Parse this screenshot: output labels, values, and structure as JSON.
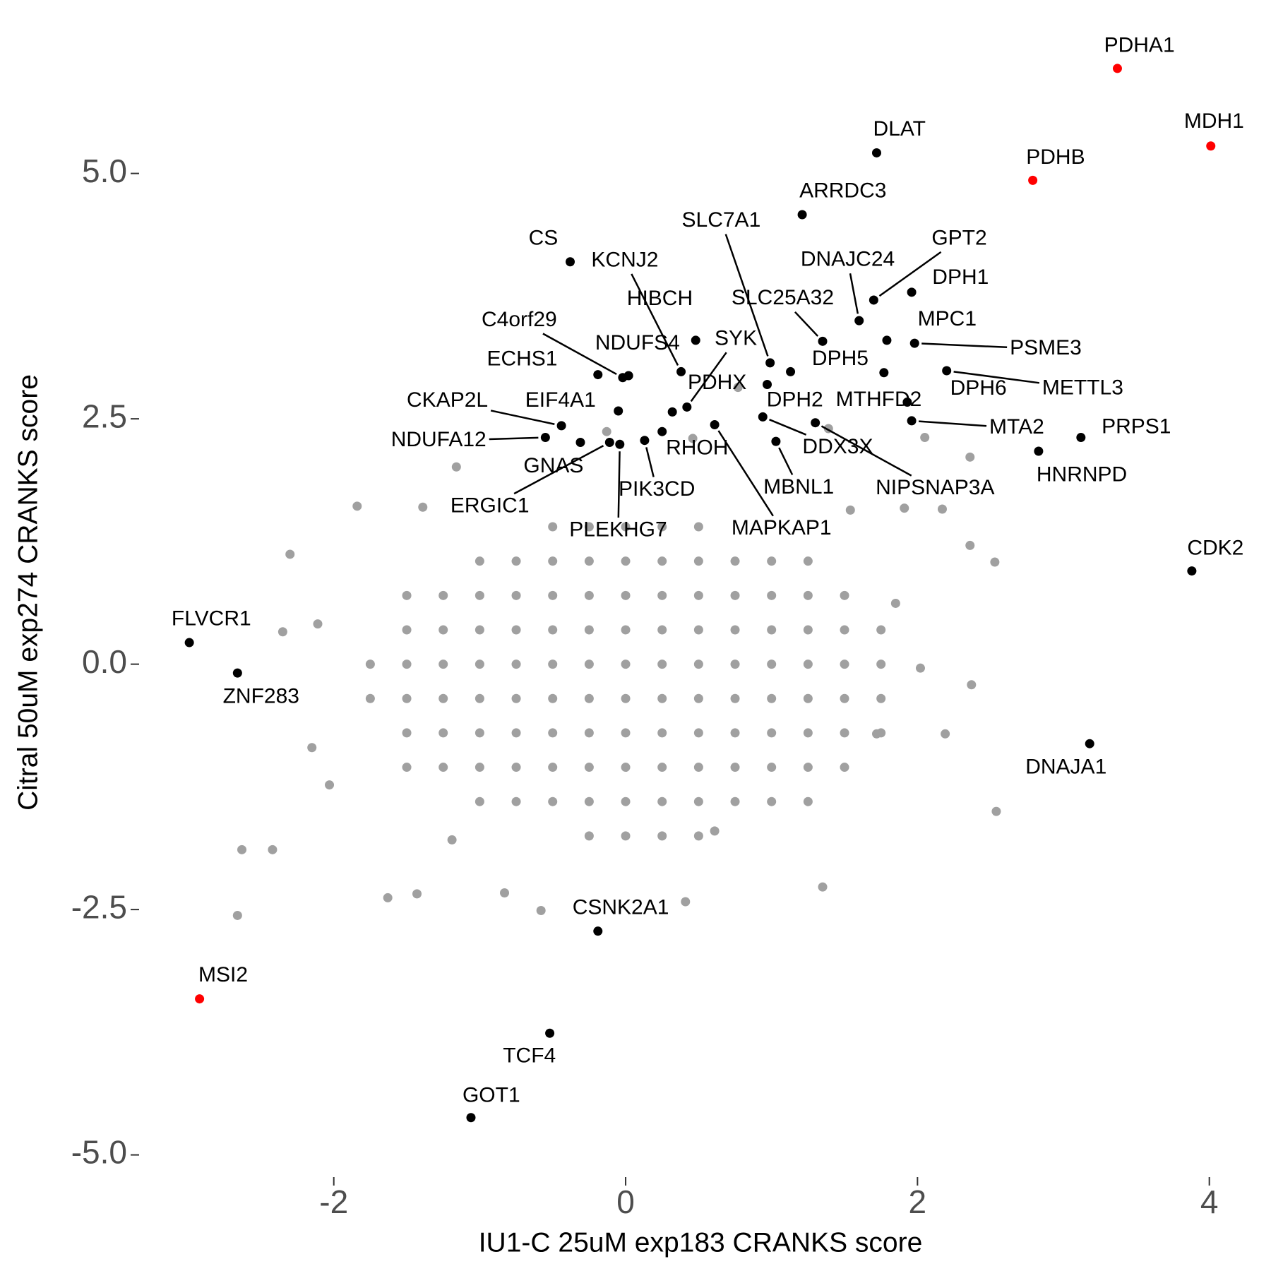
{
  "chart_data": {
    "type": "scatter",
    "x_label": "IU1-C 25uM exp183 CRANKS score",
    "y_label": "Citral 50uM exp274 CRANKS score",
    "xlim": [
      -3.31,
      4.2
    ],
    "ylim": [
      -5.19,
      6.35
    ],
    "xticks": [
      -2,
      0,
      2,
      4
    ],
    "yticks": [
      {
        "value": -5,
        "label": "-5.0"
      },
      -2.5,
      {
        "value": 0,
        "label": "0.0"
      },
      2.5,
      {
        "value": 5,
        "label": "5.0"
      }
    ],
    "grid": false,
    "series": [
      {
        "color": "#a0a0a0",
        "x": [
          -1.84,
          -1.39,
          -2.3,
          -2.35,
          -2.11,
          -2.63,
          -2.42,
          -2.66,
          -2.03,
          -2.15,
          -1.63,
          -1.43,
          -0.58,
          0.41,
          1.35,
          2.54,
          2.37,
          2.36,
          2.53,
          2.17,
          1.54,
          1.91,
          2.05,
          2.36,
          0.77,
          1.39,
          0.46,
          -0.13,
          -1.16,
          0.61,
          -0.83,
          -1.19,
          2.19,
          2.02,
          1.85,
          1.72,
          -1.75,
          -1.75,
          -1.5,
          -1.5,
          -1.5,
          -1.5,
          -1.5,
          -1.5,
          -1.25,
          -1.25,
          -1.25,
          -1.25,
          -1.25,
          -1.25,
          -1.0,
          -1.0,
          -1.0,
          -1.0,
          -1.0,
          -1.0,
          -1.0,
          -1.0,
          -0.75,
          -0.75,
          -0.75,
          -0.75,
          -0.75,
          -0.75,
          -0.75,
          -0.75,
          -0.5,
          -0.5,
          -0.5,
          -0.5,
          -0.5,
          -0.5,
          -0.5,
          -0.5,
          -0.5,
          -0.25,
          -0.25,
          -0.25,
          -0.25,
          -0.25,
          -0.25,
          -0.25,
          -0.25,
          -0.25,
          -0.25,
          0,
          0,
          0,
          0,
          0,
          0,
          0,
          0,
          0,
          0,
          0.25,
          0.25,
          0.25,
          0.25,
          0.25,
          0.25,
          0.25,
          0.25,
          0.25,
          0.25,
          0.5,
          0.5,
          0.5,
          0.5,
          0.5,
          0.5,
          0.5,
          0.5,
          0.5,
          0.5,
          0.75,
          0.75,
          0.75,
          0.75,
          0.75,
          0.75,
          0.75,
          0.75,
          1.0,
          1.0,
          1.0,
          1.0,
          1.0,
          1.0,
          1.0,
          1.0,
          1.25,
          1.25,
          1.25,
          1.25,
          1.25,
          1.25,
          1.25,
          1.25,
          1.5,
          1.5,
          1.5,
          1.5,
          1.5,
          1.5,
          1.75,
          1.75,
          1.75,
          1.75
        ],
        "y": [
          1.61,
          1.6,
          1.12,
          0.33,
          0.41,
          -1.89,
          -1.89,
          -2.56,
          -1.23,
          -0.85,
          -2.38,
          -2.34,
          -2.51,
          -2.42,
          -2.27,
          -1.5,
          -0.21,
          1.21,
          1.04,
          1.58,
          1.57,
          1.59,
          2.31,
          2.11,
          2.82,
          2.4,
          2.3,
          2.37,
          2.01,
          -1.7,
          -2.33,
          -1.79,
          -0.71,
          -0.04,
          0.62,
          -0.71,
          -0.35,
          0,
          -1.05,
          -0.7,
          -0.35,
          0,
          0.35,
          0.7,
          -1.05,
          -0.7,
          -0.35,
          0,
          0.35,
          0.7,
          -1.4,
          -1.05,
          -0.7,
          -0.35,
          0,
          0.35,
          0.7,
          1.05,
          -1.4,
          -1.05,
          -0.7,
          -0.35,
          0,
          0.35,
          0.7,
          1.05,
          -1.4,
          -1.05,
          -0.7,
          -0.35,
          0,
          0.35,
          0.7,
          1.05,
          1.4,
          -1.75,
          -1.4,
          -1.05,
          -0.7,
          -0.35,
          0,
          0.35,
          0.7,
          1.05,
          1.4,
          -1.75,
          -1.4,
          -1.05,
          -0.7,
          -0.35,
          0,
          0.35,
          0.7,
          1.05,
          1.4,
          -1.75,
          -1.4,
          -1.05,
          -0.7,
          -0.35,
          0,
          0.35,
          0.7,
          1.05,
          1.4,
          -1.75,
          -1.4,
          -1.05,
          -0.7,
          -0.35,
          0,
          0.35,
          0.7,
          1.05,
          1.4,
          -1.4,
          -1.05,
          -0.7,
          -0.35,
          0,
          0.35,
          0.7,
          1.05,
          -1.4,
          -1.05,
          -0.7,
          -0.35,
          0,
          0.35,
          0.7,
          1.05,
          -1.4,
          -1.05,
          -0.7,
          -0.35,
          0,
          0.35,
          0.7,
          1.05,
          -1.05,
          -0.7,
          -0.35,
          0,
          0.35,
          0.7,
          -0.7,
          -0.35,
          0,
          0.35
        ]
      },
      {
        "color": "#000000",
        "labels": [
          "DLAT",
          "ARRDC3",
          "CS",
          "SLC7A1",
          "KCNJ2",
          "GPT2",
          "DNAJC24",
          "DPH1",
          "HIBCH",
          "SLC25A32",
          "MPC1",
          "C4orf29",
          "SYK",
          "NDUFS4",
          "PSME3",
          "ECHS1",
          "DPH5",
          "PDHX",
          "DPH6",
          "METTL3",
          "CKAP2L",
          "EIF4A1",
          "DPH2",
          "MTHFD2",
          "MTA2",
          "PRPS1",
          "NDUFA12",
          "DDX3X",
          "RHOH",
          "GNAS",
          "HNRNPD",
          "PIK3CD",
          "MBNL1",
          "NIPSNAP3A",
          "ERGIC1",
          "PLEKHG7",
          "MAPKAP1",
          "CDK2",
          "FLVCR1",
          "ZNF283",
          "DNAJA1",
          "CSNK2A1",
          "TCF4",
          "GOT1"
        ],
        "x": [
          1.72,
          1.21,
          -0.38,
          0.99,
          0.38,
          1.7,
          1.6,
          1.96,
          0.48,
          1.35,
          1.79,
          -0.02,
          0.42,
          0.02,
          1.98,
          -0.19,
          1.13,
          0.32,
          1.77,
          2.2,
          -0.44,
          -0.05,
          0.97,
          1.93,
          1.96,
          3.12,
          -0.55,
          0.94,
          0.25,
          -0.31,
          2.83,
          0.13,
          1.03,
          1.3,
          -0.11,
          -0.04,
          0.61,
          3.88,
          -2.99,
          -2.66,
          3.18,
          -0.19,
          -0.52,
          -1.06
        ],
        "y": [
          5.21,
          4.58,
          4.1,
          3.07,
          2.98,
          3.71,
          3.5,
          3.79,
          3.3,
          3.29,
          3.3,
          2.92,
          2.62,
          2.94,
          3.27,
          2.95,
          2.98,
          2.57,
          2.97,
          2.99,
          2.43,
          2.58,
          2.85,
          2.67,
          2.48,
          2.31,
          2.31,
          2.52,
          2.37,
          2.26,
          2.17,
          2.28,
          2.27,
          2.46,
          2.26,
          2.24,
          2.44,
          0.95,
          0.22,
          -0.09,
          -0.81,
          -2.72,
          -3.76,
          -4.62
        ]
      },
      {
        "color": "#ff0000",
        "labels": [
          "PDHA1",
          "MDH1",
          "PDHB",
          "MSI2"
        ],
        "x": [
          3.37,
          4.01,
          2.79,
          -2.92
        ],
        "y": [
          6.07,
          5.28,
          4.93,
          -3.41
        ]
      }
    ]
  }
}
